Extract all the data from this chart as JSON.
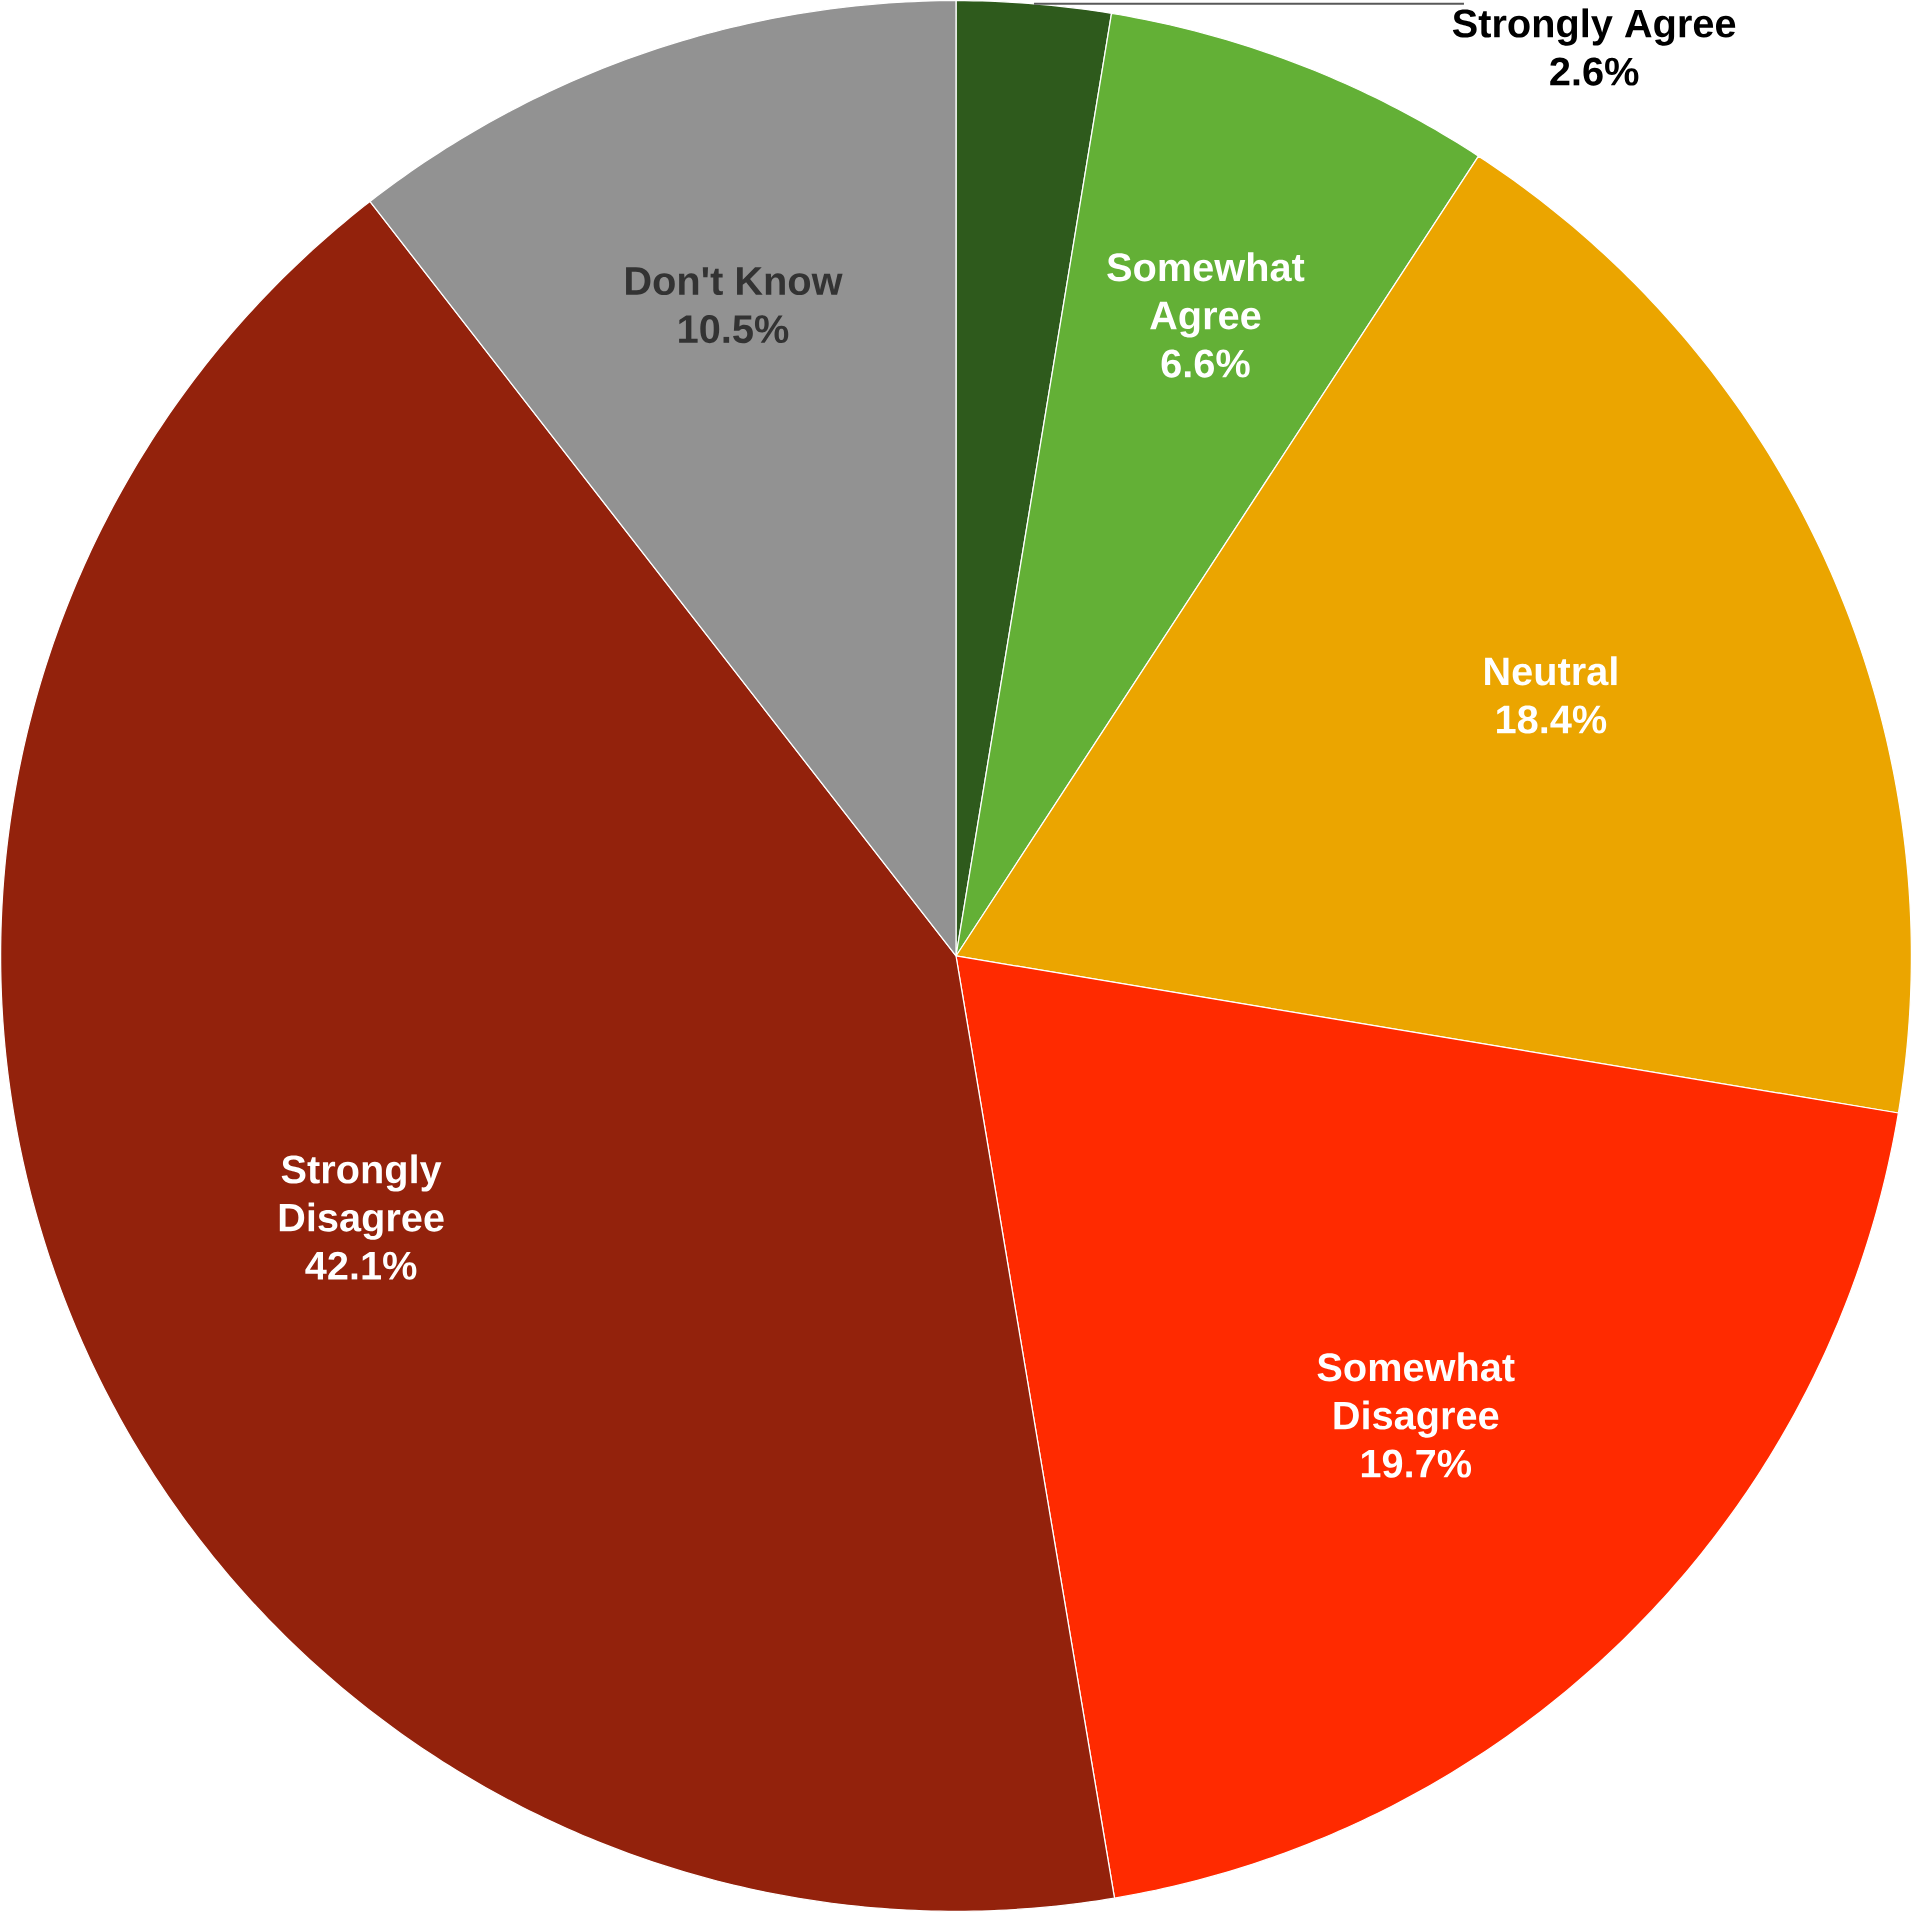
{
  "chart_data": {
    "type": "pie",
    "categories": [
      "Strongly Agree",
      "Somewhat Agree",
      "Neutral",
      "Somewhat Disagree",
      "Strongly Disagree",
      "Don't Know"
    ],
    "values": [
      2.6,
      6.6,
      18.4,
      19.7,
      42.1,
      10.5
    ],
    "colors": [
      "#2e5a1c",
      "#63b036",
      "#eba500",
      "#ff2a00",
      "#93220c",
      "#929292"
    ],
    "value_labels": [
      "2.6%",
      "6.6%",
      "18.4%",
      "19.7%",
      "42.1%",
      "10.5%"
    ]
  }
}
